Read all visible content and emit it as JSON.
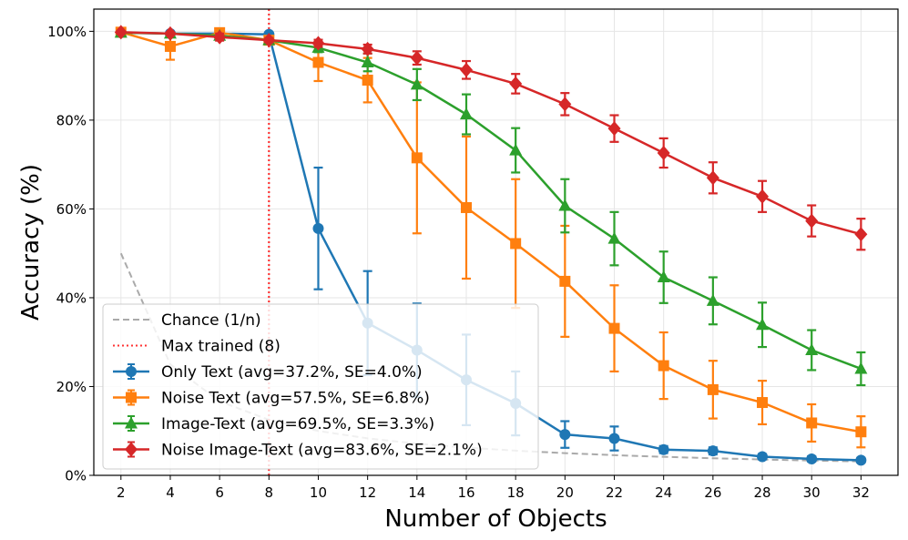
{
  "chart_data": {
    "type": "line",
    "xlabel": "Number of Objects",
    "ylabel": "Accuracy (%)",
    "xlim": [
      0.9,
      33.5
    ],
    "ylim": [
      0,
      1.05
    ],
    "x_ticks": [
      2,
      4,
      6,
      8,
      10,
      12,
      14,
      16,
      18,
      20,
      22,
      24,
      26,
      28,
      30,
      32
    ],
    "y_ticks": [
      0,
      0.2,
      0.4,
      0.6,
      0.8,
      1.0
    ],
    "y_tick_labels": [
      "0%",
      "20%",
      "40%",
      "60%",
      "80%",
      "100%"
    ],
    "grid": true,
    "legend_position": "lower-left",
    "reference_lines": {
      "chance": {
        "label": "Chance (1/n)",
        "color": "#aaaaaa",
        "x": [
          2,
          4,
          6,
          8,
          10,
          12,
          14,
          16,
          18,
          20,
          22,
          24,
          26,
          28,
          30,
          32
        ],
        "y": [
          0.5,
          0.25,
          0.1667,
          0.125,
          0.1,
          0.0833,
          0.0714,
          0.0625,
          0.0556,
          0.05,
          0.0455,
          0.0417,
          0.0385,
          0.0357,
          0.0333,
          0.0313
        ]
      },
      "max_trained": {
        "label": "Max trained (8)",
        "color": "#ff3333",
        "x": 8
      }
    },
    "series": [
      {
        "name": "Only Text (avg=37.2%, SE=4.0%)",
        "color": "#1f77b4",
        "marker": "circle",
        "x": [
          2,
          4,
          6,
          8,
          10,
          12,
          14,
          16,
          18,
          20,
          22,
          24,
          26,
          28,
          30,
          32
        ],
        "y": [
          0.997,
          0.995,
          0.995,
          0.993,
          0.556,
          0.343,
          0.282,
          0.215,
          0.162,
          0.092,
          0.083,
          0.058,
          0.055,
          0.042,
          0.037,
          0.034
        ],
        "err": [
          0,
          0,
          0,
          0,
          0.137,
          0.117,
          0.105,
          0.102,
          0.072,
          0.03,
          0.027,
          0.008,
          0.008,
          0.006,
          0.006,
          0.005
        ]
      },
      {
        "name": "Noise Text (avg=57.5%, SE=6.8%)",
        "color": "#ff7f0e",
        "marker": "square",
        "x": [
          2,
          4,
          6,
          8,
          10,
          12,
          14,
          16,
          18,
          20,
          22,
          24,
          26,
          28,
          30,
          32
        ],
        "y": [
          0.998,
          0.966,
          0.997,
          0.98,
          0.93,
          0.89,
          0.715,
          0.603,
          0.522,
          0.437,
          0.331,
          0.247,
          0.193,
          0.164,
          0.118,
          0.098
        ],
        "err": [
          0,
          0.03,
          0,
          0.005,
          0.042,
          0.05,
          0.17,
          0.16,
          0.145,
          0.125,
          0.097,
          0.075,
          0.065,
          0.049,
          0.042,
          0.035
        ]
      },
      {
        "name": "Image-Text (avg=69.5%, SE=3.3%)",
        "color": "#2ca02c",
        "marker": "triangle",
        "x": [
          2,
          4,
          6,
          8,
          10,
          12,
          14,
          16,
          18,
          20,
          22,
          24,
          26,
          28,
          30,
          32
        ],
        "y": [
          0.997,
          0.995,
          0.99,
          0.98,
          0.963,
          0.93,
          0.88,
          0.813,
          0.732,
          0.607,
          0.533,
          0.446,
          0.393,
          0.339,
          0.282,
          0.24
        ],
        "err": [
          0,
          0,
          0,
          0.005,
          0.01,
          0.02,
          0.035,
          0.045,
          0.05,
          0.06,
          0.06,
          0.058,
          0.053,
          0.05,
          0.045,
          0.037
        ]
      },
      {
        "name": "Noise Image-Text (avg=83.6%, SE=2.1%)",
        "color": "#d62728",
        "marker": "diamond",
        "x": [
          2,
          4,
          6,
          8,
          10,
          12,
          14,
          16,
          18,
          20,
          22,
          24,
          26,
          28,
          30,
          32
        ],
        "y": [
          0.998,
          0.995,
          0.987,
          0.98,
          0.973,
          0.96,
          0.94,
          0.913,
          0.882,
          0.836,
          0.781,
          0.726,
          0.67,
          0.628,
          0.573,
          0.543
        ],
        "err": [
          0,
          0,
          0.008,
          0.005,
          0.008,
          0.01,
          0.015,
          0.02,
          0.022,
          0.025,
          0.03,
          0.033,
          0.035,
          0.035,
          0.035,
          0.035
        ]
      }
    ]
  }
}
